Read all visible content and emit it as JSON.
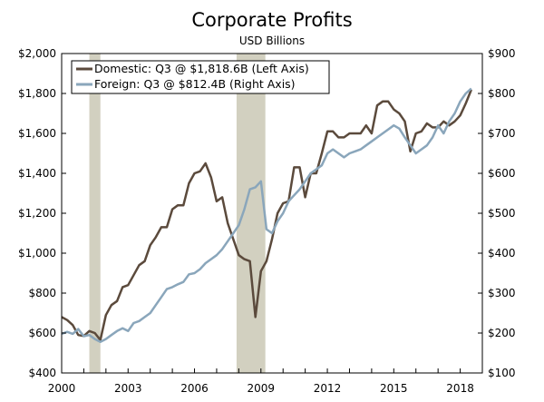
{
  "chart_data": {
    "type": "line",
    "title": "Corporate Profits",
    "subtitle": "USD Billions",
    "colors": {
      "domestic": "#5b4a3c",
      "foreign": "#8aa6bb",
      "recession": "#d2d0c0",
      "axis": "#000000"
    },
    "x_axis": {
      "min": 2000,
      "max": 2019,
      "ticks": [
        2000,
        2003,
        2006,
        2009,
        2012,
        2015,
        2018
      ]
    },
    "y_left": {
      "min": 400,
      "max": 2000,
      "ticks": [
        400,
        600,
        800,
        1000,
        1200,
        1400,
        1600,
        1800,
        2000
      ],
      "tick_labels": [
        "$400",
        "$600",
        "$800",
        "$1,000",
        "$1,200",
        "$1,400",
        "$1,600",
        "$1,800",
        "$2,000"
      ]
    },
    "y_right": {
      "min": 100,
      "max": 900,
      "ticks": [
        100,
        200,
        300,
        400,
        500,
        600,
        700,
        800,
        900
      ],
      "tick_labels": [
        "$100",
        "$200",
        "$300",
        "$400",
        "$500",
        "$600",
        "$700",
        "$800",
        "$900"
      ]
    },
    "recessions": [
      {
        "start": 2001.25,
        "end": 2001.75
      },
      {
        "start": 2007.9,
        "end": 2009.2
      }
    ],
    "legend": {
      "position": "top-left",
      "domestic": "Domestic: Q3 @ $1,818.6B (Left Axis)",
      "foreign": "Foreign: Q3 @ $812.4B (Right Axis)"
    },
    "series": [
      {
        "name": "Domestic",
        "axis": "left",
        "x": [
          2000.0,
          2000.25,
          2000.5,
          2000.75,
          2001.0,
          2001.25,
          2001.5,
          2001.75,
          2002.0,
          2002.25,
          2002.5,
          2002.75,
          2003.0,
          2003.25,
          2003.5,
          2003.75,
          2004.0,
          2004.25,
          2004.5,
          2004.75,
          2005.0,
          2005.25,
          2005.5,
          2005.75,
          2006.0,
          2006.25,
          2006.5,
          2006.75,
          2007.0,
          2007.25,
          2007.5,
          2007.75,
          2008.0,
          2008.25,
          2008.5,
          2008.75,
          2009.0,
          2009.25,
          2009.5,
          2009.75,
          2010.0,
          2010.25,
          2010.5,
          2010.75,
          2011.0,
          2011.25,
          2011.5,
          2011.75,
          2012.0,
          2012.25,
          2012.5,
          2012.75,
          2013.0,
          2013.25,
          2013.5,
          2013.75,
          2014.0,
          2014.25,
          2014.5,
          2014.75,
          2015.0,
          2015.25,
          2015.5,
          2015.75,
          2016.0,
          2016.25,
          2016.5,
          2016.75,
          2017.0,
          2017.25,
          2017.5,
          2017.75,
          2018.0,
          2018.25,
          2018.5
        ],
        "values": [
          680,
          665,
          640,
          590,
          585,
          610,
          600,
          565,
          690,
          740,
          760,
          830,
          840,
          890,
          940,
          960,
          1040,
          1080,
          1130,
          1130,
          1220,
          1240,
          1240,
          1350,
          1400,
          1410,
          1450,
          1380,
          1260,
          1280,
          1150,
          1070,
          990,
          970,
          960,
          680,
          910,
          960,
          1070,
          1200,
          1250,
          1260,
          1430,
          1430,
          1280,
          1400,
          1400,
          1500,
          1610,
          1610,
          1580,
          1580,
          1600,
          1600,
          1600,
          1640,
          1600,
          1740,
          1760,
          1760,
          1720,
          1700,
          1660,
          1510,
          1600,
          1610,
          1650,
          1630,
          1630,
          1660,
          1640,
          1660,
          1690,
          1750,
          1818.6
        ]
      },
      {
        "name": "Foreign",
        "axis": "right",
        "x": [
          2000.0,
          2000.25,
          2000.5,
          2000.75,
          2001.0,
          2001.25,
          2001.5,
          2001.75,
          2002.0,
          2002.25,
          2002.5,
          2002.75,
          2003.0,
          2003.25,
          2003.5,
          2003.75,
          2004.0,
          2004.25,
          2004.5,
          2004.75,
          2005.0,
          2005.25,
          2005.5,
          2005.75,
          2006.0,
          2006.25,
          2006.5,
          2006.75,
          2007.0,
          2007.25,
          2007.5,
          2007.75,
          2008.0,
          2008.25,
          2008.5,
          2008.75,
          2009.0,
          2009.25,
          2009.5,
          2009.75,
          2010.0,
          2010.25,
          2010.5,
          2010.75,
          2011.0,
          2011.25,
          2011.5,
          2011.75,
          2012.0,
          2012.25,
          2012.5,
          2012.75,
          2013.0,
          2013.25,
          2013.5,
          2013.75,
          2014.0,
          2014.25,
          2014.5,
          2014.75,
          2015.0,
          2015.25,
          2015.5,
          2015.75,
          2016.0,
          2016.25,
          2016.5,
          2016.75,
          2017.0,
          2017.25,
          2017.5,
          2017.75,
          2018.0,
          2018.25,
          2018.5
        ],
        "values": [
          198,
          203,
          198,
          210,
          192,
          195,
          185,
          178,
          185,
          195,
          205,
          212,
          205,
          225,
          230,
          240,
          250,
          270,
          290,
          310,
          315,
          322,
          328,
          347,
          350,
          360,
          375,
          385,
          395,
          410,
          430,
          450,
          470,
          510,
          560,
          565,
          580,
          460,
          450,
          480,
          500,
          530,
          545,
          560,
          580,
          600,
          610,
          620,
          650,
          660,
          650,
          640,
          650,
          655,
          660,
          670,
          680,
          690,
          700,
          710,
          720,
          712,
          690,
          670,
          650,
          660,
          670,
          690,
          720,
          700,
          730,
          750,
          780,
          800,
          812.4
        ]
      }
    ]
  }
}
